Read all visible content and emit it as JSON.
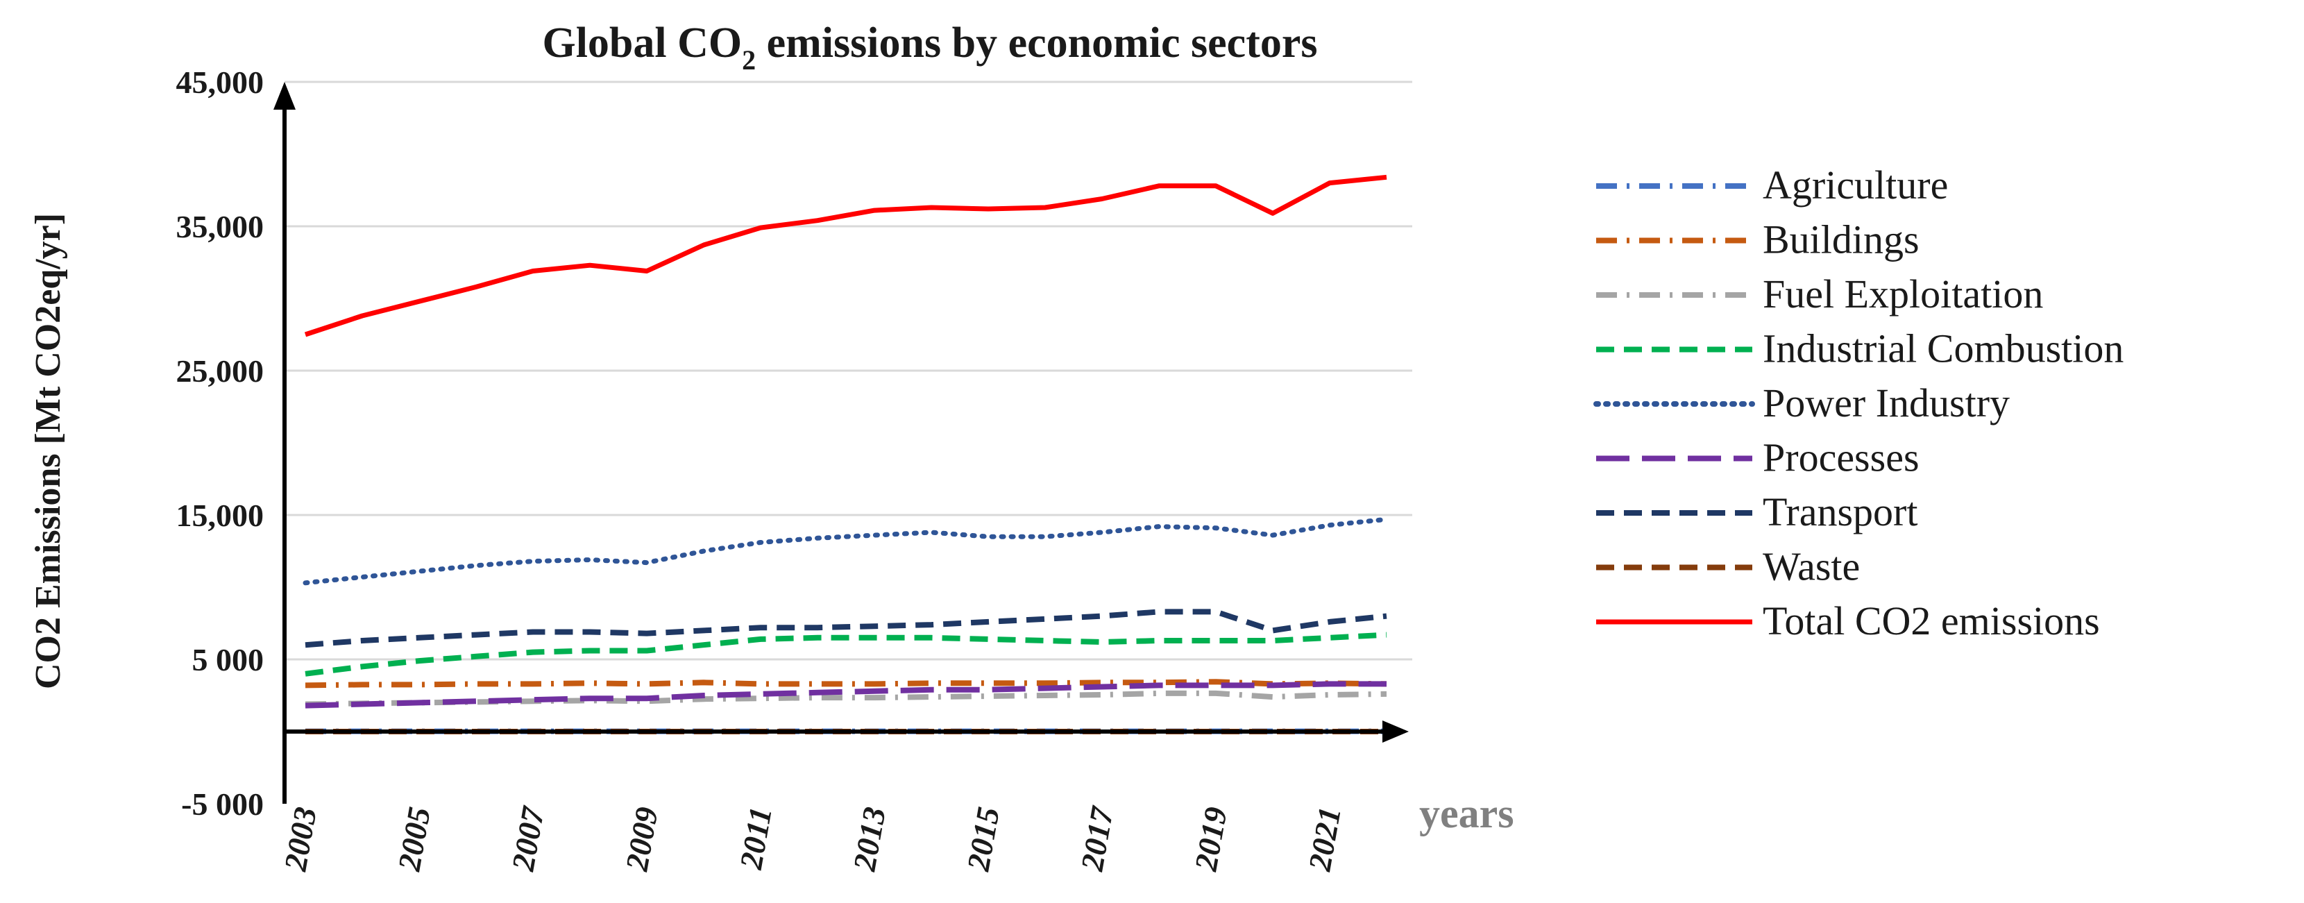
{
  "chart_data": {
    "type": "line",
    "title": "Global CO",
    "title_subscript": "2",
    "title_suffix": " emissions by economic sectors",
    "ylabel": "CO2 Emissions [Mt CO2eq/yr]",
    "xlabel": "years",
    "ylim": [
      -5000,
      45000
    ],
    "yticks": [
      {
        "value": 45000,
        "label": "45,000"
      },
      {
        "value": 35000,
        "label": "35,000"
      },
      {
        "value": 25000,
        "label": "25,000"
      },
      {
        "value": 15000,
        "label": "15,000"
      },
      {
        "value": 5000,
        "label": "5 000"
      },
      {
        "value": -5000,
        "label": "-5 000"
      }
    ],
    "x": [
      2003,
      2004,
      2005,
      2006,
      2007,
      2008,
      2009,
      2010,
      2011,
      2012,
      2013,
      2014,
      2015,
      2016,
      2017,
      2018,
      2019,
      2020,
      2021,
      2022
    ],
    "xticks": [
      "2003",
      "2005",
      "2007",
      "2009",
      "2011",
      "2013",
      "2015",
      "2017",
      "2019",
      "2021"
    ],
    "grid": true,
    "legend_position": "right",
    "series": [
      {
        "name": "Agriculture",
        "color": "#4472c4",
        "style": "dashdot",
        "values": [
          20,
          20,
          20,
          20,
          20,
          20,
          20,
          20,
          20,
          20,
          20,
          20,
          20,
          20,
          20,
          20,
          20,
          20,
          20,
          20
        ]
      },
      {
        "name": "Buildings",
        "color": "#c55a11",
        "style": "dashdot",
        "values": [
          3200,
          3250,
          3250,
          3300,
          3300,
          3350,
          3300,
          3400,
          3300,
          3300,
          3300,
          3350,
          3350,
          3350,
          3400,
          3400,
          3450,
          3300,
          3350,
          3300
        ]
      },
      {
        "name": "Fuel Exploitation",
        "color": "#a5a5a5",
        "style": "dashdot",
        "values": [
          1900,
          1950,
          2000,
          2050,
          2100,
          2150,
          2100,
          2250,
          2300,
          2350,
          2350,
          2400,
          2450,
          2500,
          2550,
          2650,
          2650,
          2400,
          2550,
          2600
        ]
      },
      {
        "name": "Industrial Combustion",
        "color": "#00b050",
        "style": "dash",
        "values": [
          4000,
          4500,
          4900,
          5200,
          5500,
          5600,
          5600,
          6000,
          6400,
          6500,
          6500,
          6500,
          6400,
          6300,
          6200,
          6300,
          6300,
          6300,
          6500,
          6700
        ]
      },
      {
        "name": "Power Industry",
        "color": "#2f5597",
        "style": "dot",
        "values": [
          10300,
          10700,
          11100,
          11500,
          11800,
          11900,
          11700,
          12500,
          13100,
          13400,
          13600,
          13800,
          13500,
          13500,
          13800,
          14200,
          14100,
          13600,
          14300,
          14700
        ]
      },
      {
        "name": "Processes",
        "color": "#7030a0",
        "style": "longdash",
        "values": [
          1800,
          1900,
          2000,
          2100,
          2200,
          2300,
          2300,
          2500,
          2600,
          2700,
          2800,
          2900,
          2900,
          3000,
          3100,
          3200,
          3200,
          3200,
          3300,
          3300
        ]
      },
      {
        "name": "Transport",
        "color": "#1f3864",
        "style": "dash",
        "values": [
          6000,
          6300,
          6500,
          6700,
          6900,
          6900,
          6800,
          7000,
          7200,
          7200,
          7300,
          7400,
          7600,
          7800,
          8000,
          8300,
          8300,
          7000,
          7600,
          8000
        ]
      },
      {
        "name": "Waste",
        "color": "#843c0c",
        "style": "dash",
        "values": [
          0,
          0,
          0,
          0,
          0,
          0,
          0,
          0,
          0,
          0,
          0,
          0,
          0,
          0,
          0,
          0,
          0,
          0,
          0,
          0
        ]
      },
      {
        "name": "Total CO2 emissions",
        "color": "#ff0000",
        "style": "solid",
        "values": [
          27500,
          28800,
          29800,
          30800,
          31900,
          32300,
          31900,
          33700,
          34900,
          35400,
          36100,
          36300,
          36200,
          36300,
          36900,
          37800,
          37800,
          35900,
          38000,
          38400
        ]
      }
    ]
  }
}
